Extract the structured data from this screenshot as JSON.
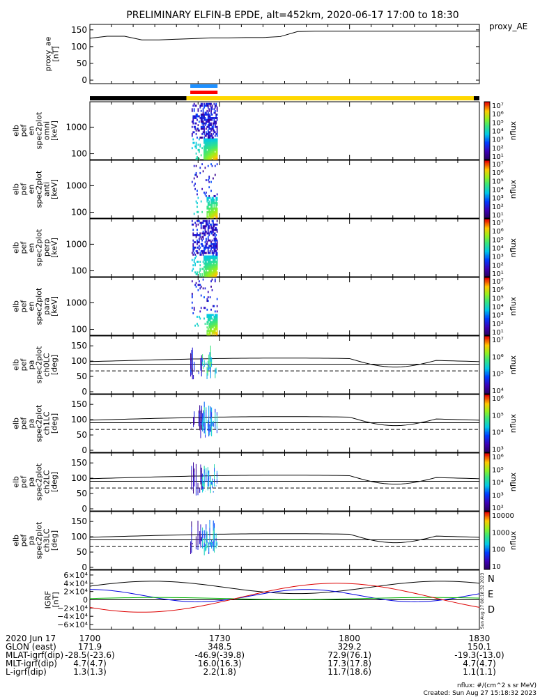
{
  "chart_data": {
    "type": "spectrogram",
    "title": "PRELIMINARY ELFIN-B EPDE, alt=452km, 2020-06-17 17:00 to 18:30",
    "time_ticks": [
      "1700",
      "1730",
      "1800",
      "1830"
    ],
    "panels": [
      {
        "id": "proxy_ae",
        "type": "line",
        "ylabel": [
          "proxy_ae",
          "[nT]"
        ],
        "legend": "proxy_AE",
        "yticks": [
          "0",
          "50",
          "100",
          "150"
        ],
        "ylim": [
          0,
          160
        ],
        "x": [
          0,
          4,
          8,
          12,
          16,
          20,
          24,
          28,
          32,
          36,
          40,
          44,
          48,
          52,
          56,
          60,
          64,
          68,
          72,
          76,
          80,
          84,
          88,
          90
        ],
        "y": [
          125,
          131,
          131,
          120,
          120,
          122,
          124,
          126,
          126,
          127,
          127,
          130,
          145,
          146,
          146,
          146,
          146,
          146,
          146,
          146,
          146,
          146,
          146,
          146
        ]
      },
      {
        "id": "en_omni",
        "type": "spectrogram",
        "ylabel": [
          "elb",
          "pef",
          "en",
          "spec2plot",
          "omni",
          "[keV]"
        ],
        "yticks": [
          "100",
          "1000"
        ],
        "cbar_label": "nflux",
        "cbar_ticks": [
          "10⁷",
          "10⁶",
          "10⁵",
          "10⁴",
          "10³",
          "10²",
          "10¹"
        ]
      },
      {
        "id": "en_anti",
        "type": "spectrogram",
        "ylabel": [
          "elb",
          "pef",
          "en",
          "spec2plot",
          "anti",
          "[keV]"
        ],
        "yticks": [
          "100",
          "1000"
        ],
        "cbar_label": "nflux",
        "cbar_ticks": [
          "10⁷",
          "10⁶",
          "10⁵",
          "10⁴",
          "10³",
          "10²",
          "10¹"
        ]
      },
      {
        "id": "en_perp",
        "type": "spectrogram",
        "ylabel": [
          "elb",
          "pef",
          "en",
          "spec2plot",
          "perp",
          "[keV]"
        ],
        "yticks": [
          "100",
          "1000"
        ],
        "cbar_label": "nflux",
        "cbar_ticks": [
          "10⁷",
          "10⁶",
          "10⁵",
          "10⁴",
          "10³",
          "10²",
          "10¹"
        ]
      },
      {
        "id": "en_para",
        "type": "spectrogram",
        "ylabel": [
          "elb",
          "pef",
          "en",
          "spec2plot",
          "para",
          "[keV]"
        ],
        "yticks": [
          "100",
          "1000"
        ],
        "cbar_label": "nflux",
        "cbar_ticks": [
          "10⁷",
          "10⁶",
          "10⁵",
          "10⁴",
          "10³",
          "10²",
          "10¹"
        ]
      },
      {
        "id": "pa_ch0",
        "type": "spectrogram",
        "ylabel": [
          "elb",
          "pef",
          "pa",
          "spec2plot",
          "ch0LC",
          "[deg]"
        ],
        "yticks": [
          "0",
          "50",
          "100",
          "150"
        ],
        "cbar_label": "nflux",
        "cbar_ticks": [
          "10⁷",
          "10⁶",
          "10⁵",
          "10⁴"
        ]
      },
      {
        "id": "pa_ch1",
        "type": "spectrogram",
        "ylabel": [
          "elb",
          "pef",
          "pa",
          "spec2plot",
          "ch1LC",
          "[deg]"
        ],
        "yticks": [
          "0",
          "50",
          "100",
          "150"
        ],
        "cbar_label": "nflux",
        "cbar_ticks": [
          "10⁶",
          "10⁵",
          "10⁴",
          "10³"
        ]
      },
      {
        "id": "pa_ch2",
        "type": "spectrogram",
        "ylabel": [
          "elb",
          "pef",
          "pa",
          "spec2plot",
          "ch2LC",
          "[deg]"
        ],
        "yticks": [
          "0",
          "50",
          "100",
          "150"
        ],
        "cbar_label": "nflux",
        "cbar_ticks": [
          "10⁶",
          "10⁵",
          "10⁴",
          "10³",
          "10²"
        ]
      },
      {
        "id": "pa_ch3",
        "type": "spectrogram",
        "ylabel": [
          "elb",
          "pef",
          "pa",
          "spec2plot",
          "ch3LC",
          "[deg]"
        ],
        "yticks": [
          "0",
          "50",
          "100",
          "150"
        ],
        "cbar_label": "nflux",
        "cbar_ticks": [
          "10000",
          "1000",
          "100",
          "10"
        ]
      },
      {
        "id": "igrf",
        "type": "line",
        "ylabel": [
          "IGRF",
          "[nT]"
        ],
        "yticks": [
          "6×10⁴",
          "4×10⁴",
          "2×10⁴",
          "0",
          "−2×10⁴",
          "−4×10⁴",
          "−6×10⁴"
        ],
        "ylim": [
          -65000,
          65000
        ],
        "legend": [
          "N",
          "E",
          "D"
        ],
        "series_colors": {
          "N": "#0000dd",
          "E": "#00b400",
          "D": "#dd0000",
          "total": "#000000"
        },
        "side_text": "Sun Aug 27 08:18:32 2023"
      }
    ],
    "annotation_rows": [
      {
        "label": "2020 Jun 17",
        "values": [
          "1700",
          "1730",
          "1800",
          "1830"
        ]
      },
      {
        "label": "GLON (east)",
        "values": [
          "171.9",
          "348.5",
          "329.2",
          "150.1"
        ]
      },
      {
        "label": "MLAT-igrf(dip)",
        "values": [
          "-28.5(-23.6)",
          "-46.9(-39.8)",
          "72.9(76.1)",
          "-19.3(-13.0)"
        ]
      },
      {
        "label": "MLT-igrf(dip)",
        "values": [
          "4.7(4.7)",
          "16.0(16.3)",
          "17.3(17.8)",
          "4.7(4.7)"
        ]
      },
      {
        "label": "L-igrf(dip)",
        "values": [
          "1.3(1.3)",
          "2.2(1.8)",
          "11.7(18.6)",
          "1.1(1.1)"
        ]
      }
    ],
    "footer": [
      "nflux: #/(cm^2 s sr MeV)",
      "Created: Sun Aug 27 15:18:32 2023"
    ],
    "time_range_minutes": [
      0,
      90
    ]
  },
  "colors": {
    "bar_dark": "#000000",
    "bar_yellow": "#ffd700",
    "bar_blue": "#1e90ff",
    "bar_red": "#ff0000"
  }
}
